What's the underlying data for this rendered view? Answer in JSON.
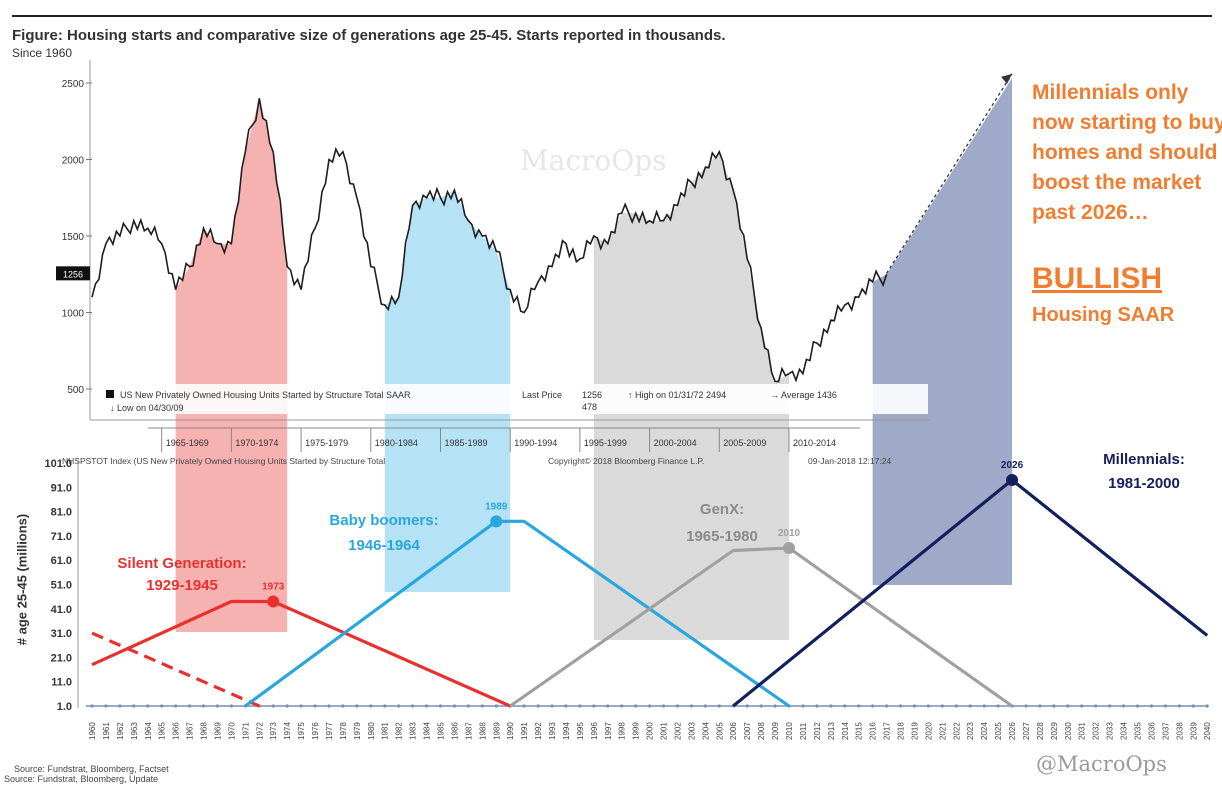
{
  "figure": {
    "title": "Figure: Housing starts and comparative size of generations age 25-45.  Starts reported in thousands.",
    "since": "Since 1960",
    "callout": "Millennials only now starting to buy homes and should boost the market past 2026…",
    "bullish": "BULLISH",
    "housing_saar": "Housing SAAR",
    "source_1": "Source: Fundstrat, Bloomberg, Factset",
    "source_2": "Source: Fundstrat, Bloomberg, Update",
    "watermark": "@MacroOps",
    "top_watermark": "MacroOps"
  },
  "colors": {
    "silent": "#e8312f",
    "silent_fill": "#f5a3a3",
    "boomers": "#29a7dd",
    "boomers_fill": "#a9ddf5",
    "genx": "#a0a0a0",
    "genx_fill": "#d3d3d3",
    "millennials": "#14205e",
    "millennials_fill": "#8e9bbf",
    "callout": "#f07d30",
    "housing_line": "#1e1e1e"
  },
  "chart_data": [
    {
      "type": "line",
      "title": "US New Privately Owned Housing Units Started by Structure Total SAAR",
      "ylim": [
        400,
        2600
      ],
      "yticks": [
        500,
        1000,
        1500,
        2000,
        2500
      ],
      "current_value_tag": "1256",
      "legend": {
        "series": "US New Privately Owned Housing Units Started by Structure Total SAAR",
        "last_price_label": "Last Price",
        "last_price": "1256",
        "last_price_2": "478",
        "high": "High on 01/31/72 2494",
        "low": "Low on 04/30/09",
        "average": "Average 1436"
      },
      "footer": "NHSPSTOT Index (US New Privately Owned Housing Units Started by Structure Total",
      "copyright": "Copyright© 2018 Bloomberg Finance L.P.",
      "timestamp": "09-Jan-2018 12:17:24",
      "period_labels": [
        "1965-1969",
        "1970-1974",
        "1975-1979",
        "1980-1984",
        "1985-1989",
        "1990-1994",
        "1995-1999",
        "2000-2004",
        "2005-2009",
        "2010-2014"
      ],
      "series": [
        {
          "name": "Housing starts (thousands, SAAR)",
          "x": [
            1960,
            1961,
            1962,
            1963,
            1964,
            1965,
            1966,
            1967,
            1968,
            1969,
            1970,
            1971,
            1972,
            1973,
            1974,
            1975,
            1976,
            1977,
            1978,
            1979,
            1980,
            1981,
            1982,
            1983,
            1984,
            1985,
            1986,
            1987,
            1988,
            1989,
            1990,
            1991,
            1992,
            1993,
            1994,
            1995,
            1996,
            1997,
            1998,
            1999,
            2000,
            2001,
            2002,
            2003,
            2004,
            2005,
            2006,
            2007,
            2008,
            2009,
            2010,
            2011,
            2012,
            2013,
            2014,
            2015,
            2016,
            2017
          ],
          "values": [
            1100,
            1450,
            1500,
            1600,
            1550,
            1450,
            1150,
            1300,
            1550,
            1450,
            1450,
            2050,
            2400,
            2050,
            1300,
            1150,
            1550,
            2000,
            2050,
            1750,
            1300,
            1050,
            1100,
            1700,
            1750,
            1750,
            1800,
            1600,
            1500,
            1400,
            1150,
            1000,
            1200,
            1300,
            1450,
            1350,
            1500,
            1450,
            1650,
            1650,
            1600,
            1600,
            1700,
            1850,
            1950,
            2050,
            1800,
            1350,
            900,
            550,
            600,
            600,
            800,
            950,
            1050,
            1100,
            1200,
            1250
          ]
        }
      ],
      "shaded_periods": [
        {
          "name": "Silent Generation buying window",
          "from": 1966,
          "to": 1974
        },
        {
          "name": "Baby boomers buying window",
          "from": 1981,
          "to": 1990
        },
        {
          "name": "GenX buying window",
          "from": 1996,
          "to": 2010
        },
        {
          "name": "Millennials buying window",
          "from": 2016,
          "to": 2026
        }
      ],
      "projection_arrow": {
        "from": [
          2017,
          1256
        ],
        "to": [
          2026,
          2560
        ]
      }
    },
    {
      "type": "line",
      "title": "Comparative size of generations age 25-45",
      "xlabel": "",
      "ylabel": "# age 25-45 (millions)",
      "xlim": [
        1960,
        2040
      ],
      "ylim": [
        1.0,
        101.0
      ],
      "yticks": [
        "1.0",
        "11.0",
        "21.0",
        "31.0",
        "41.0",
        "51.0",
        "61.0",
        "71.0",
        "81.0",
        "91.0",
        "101.0"
      ],
      "series": [
        {
          "name": "Silent Generation",
          "years_label": "1929-1945",
          "peak_year": "1973",
          "x": [
            1960,
            1970,
            1973,
            1990
          ],
          "values": [
            18,
            44,
            44,
            1
          ]
        },
        {
          "name": "Silent Generation (prior cohort)",
          "dashed": true,
          "x": [
            1960,
            1972
          ],
          "values": [
            31,
            1
          ]
        },
        {
          "name": "Baby boomers",
          "years_label": "1946-1964",
          "peak_year": "1989",
          "x": [
            1971,
            1989,
            1991,
            2010
          ],
          "values": [
            1,
            77,
            77,
            1
          ]
        },
        {
          "name": "GenX",
          "years_label": "1965-1980",
          "peak_year": "2010",
          "x": [
            1990,
            2006,
            2010,
            2026
          ],
          "values": [
            1,
            65,
            66,
            1
          ]
        },
        {
          "name": "Millennials",
          "years_label": "1981-2000",
          "peak_year": "2026",
          "x": [
            2006,
            2026,
            2040
          ],
          "values": [
            1,
            94,
            30
          ]
        }
      ],
      "labels": {
        "silent_name": "Silent Generation:",
        "silent_years": "1929-1945",
        "boomers_name": "Baby boomers:",
        "boomers_years": "1946-1964",
        "genx_name": "GenX:",
        "genx_years": "1965-1980",
        "millennials_name": "Millennials:",
        "millennials_years": "1981-2000"
      },
      "xtick_years": [
        1960,
        1961,
        1962,
        1963,
        1964,
        1965,
        1966,
        1967,
        1968,
        1969,
        1970,
        1971,
        1972,
        1973,
        1974,
        1975,
        1976,
        1977,
        1978,
        1979,
        1980,
        1981,
        1982,
        1983,
        1984,
        1985,
        1986,
        1987,
        1988,
        1989,
        1990,
        1991,
        1992,
        1993,
        1994,
        1995,
        1996,
        1997,
        1998,
        1999,
        2000,
        2001,
        2002,
        2003,
        2004,
        2005,
        2006,
        2007,
        2008,
        2009,
        2010,
        2011,
        2012,
        2013,
        2014,
        2015,
        2016,
        2017,
        2018,
        2019,
        2020,
        2021,
        2022,
        2023,
        2024,
        2025,
        2026,
        2027,
        2028,
        2029,
        2030,
        2031,
        2032,
        2033,
        2034,
        2035,
        2036,
        2037,
        2038,
        2039,
        2040
      ]
    }
  ]
}
